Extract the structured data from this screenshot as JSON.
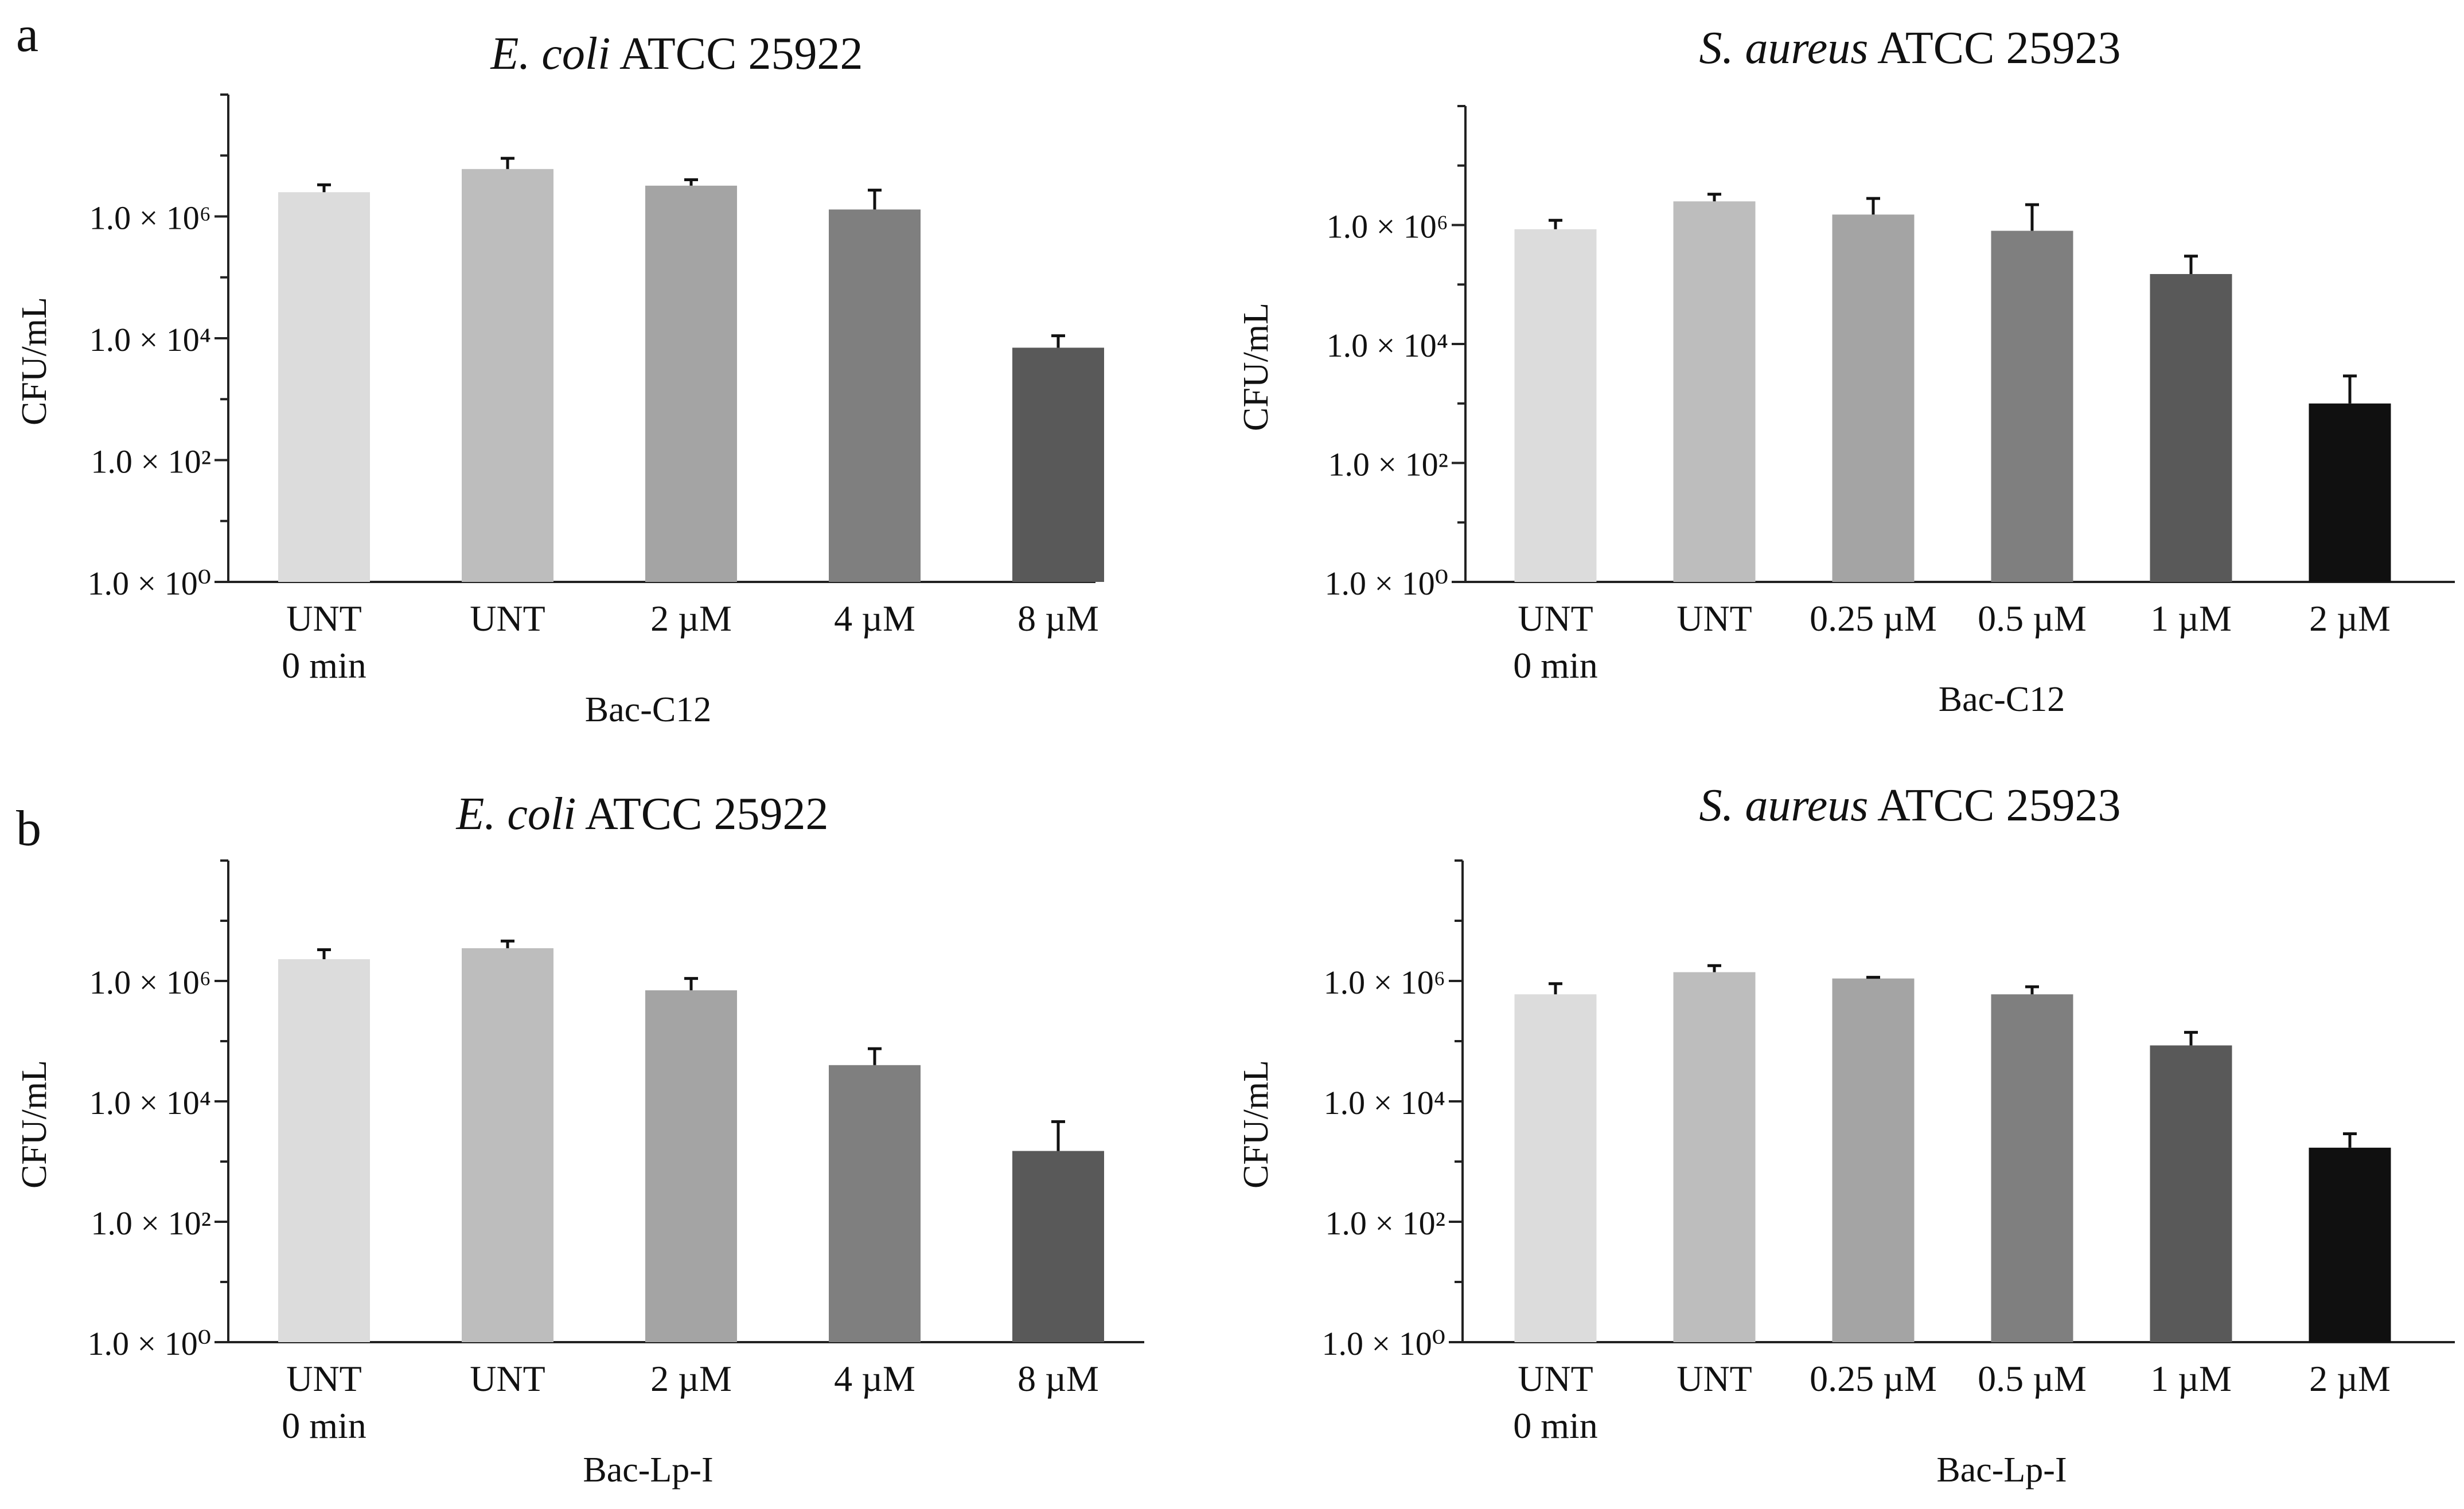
{
  "panel_labels": [
    "a",
    "b"
  ],
  "chart_data": [
    {
      "type": "bar",
      "panel": "a",
      "title_italic": "E. coli",
      "title_rest": " ATCC 25922",
      "ylabel": "CFU/mL",
      "yscale": "log",
      "ylim": [
        1,
        100000000
      ],
      "ytick_labels": [
        "1.0 × 10⁰",
        "1.0 × 10²",
        "1.0 × 10⁴",
        "1.0 × 10⁶"
      ],
      "yticks": [
        1,
        100,
        10000,
        1000000
      ],
      "categories": [
        [
          "UNT",
          "0 min"
        ],
        [
          "UNT"
        ],
        [
          "2 µM"
        ],
        [
          "4 µM"
        ],
        [
          "8 µM"
        ]
      ],
      "values": [
        2500000,
        6000000,
        3200000,
        1300000,
        7000
      ],
      "errors_upper": [
        3300000,
        9000000,
        4000000,
        2700000,
        11000
      ],
      "bar_colors": [
        "#dcdcdc",
        "#bdbdbd",
        "#a4a4a4",
        "#7f7f7f",
        "#595959"
      ],
      "xlabel": "Bac-C12"
    },
    {
      "type": "bar",
      "panel": "a",
      "title_italic": "S. aureus",
      "title_rest": " ATCC 25923",
      "ylabel": "CFU/mL",
      "yscale": "log",
      "ylim": [
        1,
        100000000
      ],
      "ytick_labels": [
        "1.0 × 10⁰",
        "1.0 × 10²",
        "1.0 × 10⁴",
        "1.0 × 10⁶"
      ],
      "yticks": [
        1,
        100,
        10000,
        1000000
      ],
      "categories": [
        [
          "UNT",
          "0 min"
        ],
        [
          "UNT"
        ],
        [
          "0.25 µM"
        ],
        [
          "0.5 µM"
        ],
        [
          "1 µM"
        ],
        [
          "2 µM"
        ]
      ],
      "values": [
        850000,
        2500000,
        1500000,
        800000,
        150000,
        1000
      ],
      "errors_upper": [
        1200000,
        3300000,
        2800000,
        2200000,
        300000,
        2900
      ],
      "bar_colors": [
        "#dcdcdc",
        "#bdbdbd",
        "#a4a4a4",
        "#7f7f7f",
        "#595959",
        "#101010"
      ],
      "xlabel": "Bac-C12"
    },
    {
      "type": "bar",
      "panel": "b",
      "title_italic": "E. coli",
      "title_rest": " ATCC 25922",
      "ylabel": "CFU/mL",
      "yscale": "log",
      "ylim": [
        1,
        100000000
      ],
      "ytick_labels": [
        "1.0 × 10⁰",
        "1.0 × 10²",
        "1.0 × 10⁴",
        "1.0 × 10⁶"
      ],
      "yticks": [
        1,
        100,
        10000,
        1000000
      ],
      "categories": [
        [
          "UNT",
          "0 min"
        ],
        [
          "UNT"
        ],
        [
          "2 µM"
        ],
        [
          "4 µM"
        ],
        [
          "8 µM"
        ]
      ],
      "values": [
        2300000,
        3500000,
        700000,
        40000,
        1500
      ],
      "errors_upper": [
        3300000,
        4600000,
        1100000,
        75000,
        4600
      ],
      "bar_colors": [
        "#dcdcdc",
        "#bdbdbd",
        "#a4a4a4",
        "#7f7f7f",
        "#595959"
      ],
      "xlabel": "Bac-Lp-I"
    },
    {
      "type": "bar",
      "panel": "b",
      "title_italic": "S. aureus",
      "title_rest": " ATCC 25923",
      "ylabel": "CFU/mL",
      "yscale": "log",
      "ylim": [
        1,
        100000000
      ],
      "ytick_labels": [
        "1.0 × 10⁰",
        "1.0 × 10²",
        "1.0 × 10⁴",
        "1.0 × 10⁶"
      ],
      "yticks": [
        1,
        100,
        10000,
        1000000
      ],
      "categories": [
        [
          "UNT",
          "0 min"
        ],
        [
          "UNT"
        ],
        [
          "0.25 µM"
        ],
        [
          "0.5 µM"
        ],
        [
          "1 µM"
        ],
        [
          "2 µM"
        ]
      ],
      "values": [
        600000,
        1400000,
        1100000,
        600000,
        85000,
        1700
      ],
      "errors_upper": [
        900000,
        1800000,
        1150000,
        800000,
        140000,
        2900
      ],
      "bar_colors": [
        "#dcdcdc",
        "#bdbdbd",
        "#a4a4a4",
        "#7f7f7f",
        "#595959",
        "#101010"
      ],
      "xlabel": "Bac-Lp-I"
    }
  ]
}
